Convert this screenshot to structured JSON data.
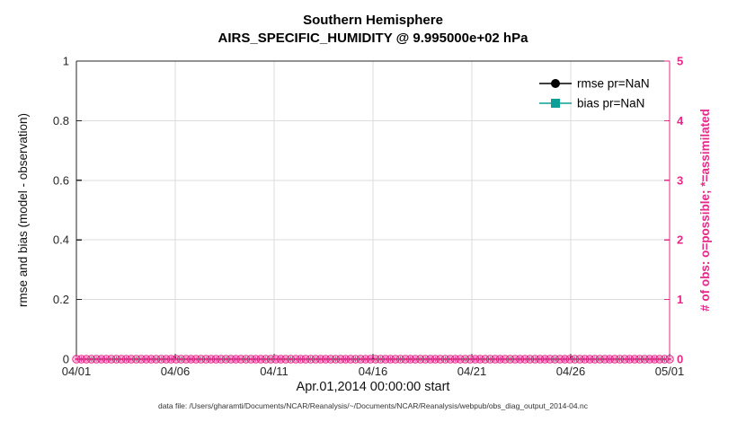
{
  "chart_data": {
    "type": "line",
    "title": "Southern Hemisphere",
    "subtitle": "AIRS_SPECIFIC_HUMIDITY @ 9.995000e+02 hPa",
    "xlabel": "Apr.01,2014 00:00:00 start",
    "ylabel_left": "rmse and bias (model - observation)",
    "ylabel_right": "# of obs: o=possible; *=assimilated",
    "caption": "data file: /Users/gharamti/Documents/NCAR/Reanalysis/~/Documents/NCAR/Reanalysis/webpub/obs_diag_output_2014-04.nc",
    "x_ticks": [
      "04/01",
      "04/06",
      "04/11",
      "04/16",
      "04/21",
      "04/26",
      "05/01"
    ],
    "y_left_ticks": [
      "0",
      "0.2",
      "0.4",
      "0.6",
      "0.8",
      "1"
    ],
    "y_left_values": [
      0,
      0.2,
      0.4,
      0.6,
      0.8,
      1
    ],
    "y_left_lim": [
      0,
      1
    ],
    "y_right_ticks": [
      "0",
      "1",
      "2",
      "3",
      "4",
      "5"
    ],
    "y_right_values": [
      0,
      1,
      2,
      3,
      4,
      5
    ],
    "y_right_lim": [
      0,
      5
    ],
    "grid": true,
    "legend_position": "top-right-inside",
    "legend": [
      {
        "label": "rmse pr=NaN",
        "color": "#000000",
        "marker": "circle"
      },
      {
        "label": "bias pr=NaN",
        "color": "#0d9e96",
        "marker": "square"
      }
    ],
    "series": [
      {
        "name": "rmse",
        "axis": "left",
        "marker": "circle",
        "color": "#000000",
        "values": "NaN"
      },
      {
        "name": "bias",
        "axis": "left",
        "marker": "square",
        "color": "#0d9e96",
        "values": "NaN"
      },
      {
        "name": "obs_possible",
        "axis": "right",
        "marker": "o",
        "color": "#e7298a",
        "constant_value": 0,
        "n_points": 120
      },
      {
        "name": "obs_assimilated",
        "axis": "right",
        "marker": "*",
        "color": "#e7298a",
        "constant_value": 0,
        "n_points": 120
      }
    ],
    "colors": {
      "right_axis": "#e7298a",
      "rmse": "#000000",
      "bias": "#0d9e96",
      "grid": "#dcdcdc",
      "axis": "#262626"
    }
  }
}
